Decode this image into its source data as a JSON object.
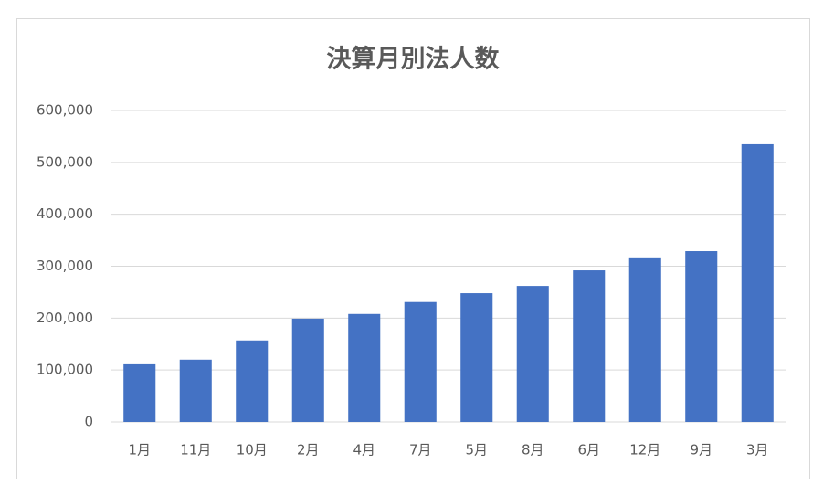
{
  "chart_data": {
    "type": "bar",
    "title": "決算月別法人数",
    "categories": [
      "1月",
      "11月",
      "10月",
      "2月",
      "4月",
      "7月",
      "5月",
      "8月",
      "6月",
      "12月",
      "9月",
      "3月"
    ],
    "values": [
      111000,
      120000,
      157000,
      199000,
      208000,
      231000,
      248000,
      262000,
      292000,
      317000,
      329000,
      535000
    ],
    "color": "#4472c4",
    "ylim": [
      0,
      600000
    ],
    "yticks": [
      0,
      {
        "value": 100000,
        "label": "100,000"
      },
      {
        "value": 200000,
        "label": "200,000"
      },
      {
        "value": 300000,
        "label": "300,000"
      },
      {
        "value": 400000,
        "label": "400,000"
      },
      {
        "value": 500000,
        "label": "500,000"
      },
      {
        "value": 600000,
        "label": "600,000"
      }
    ],
    "grid": true
  }
}
